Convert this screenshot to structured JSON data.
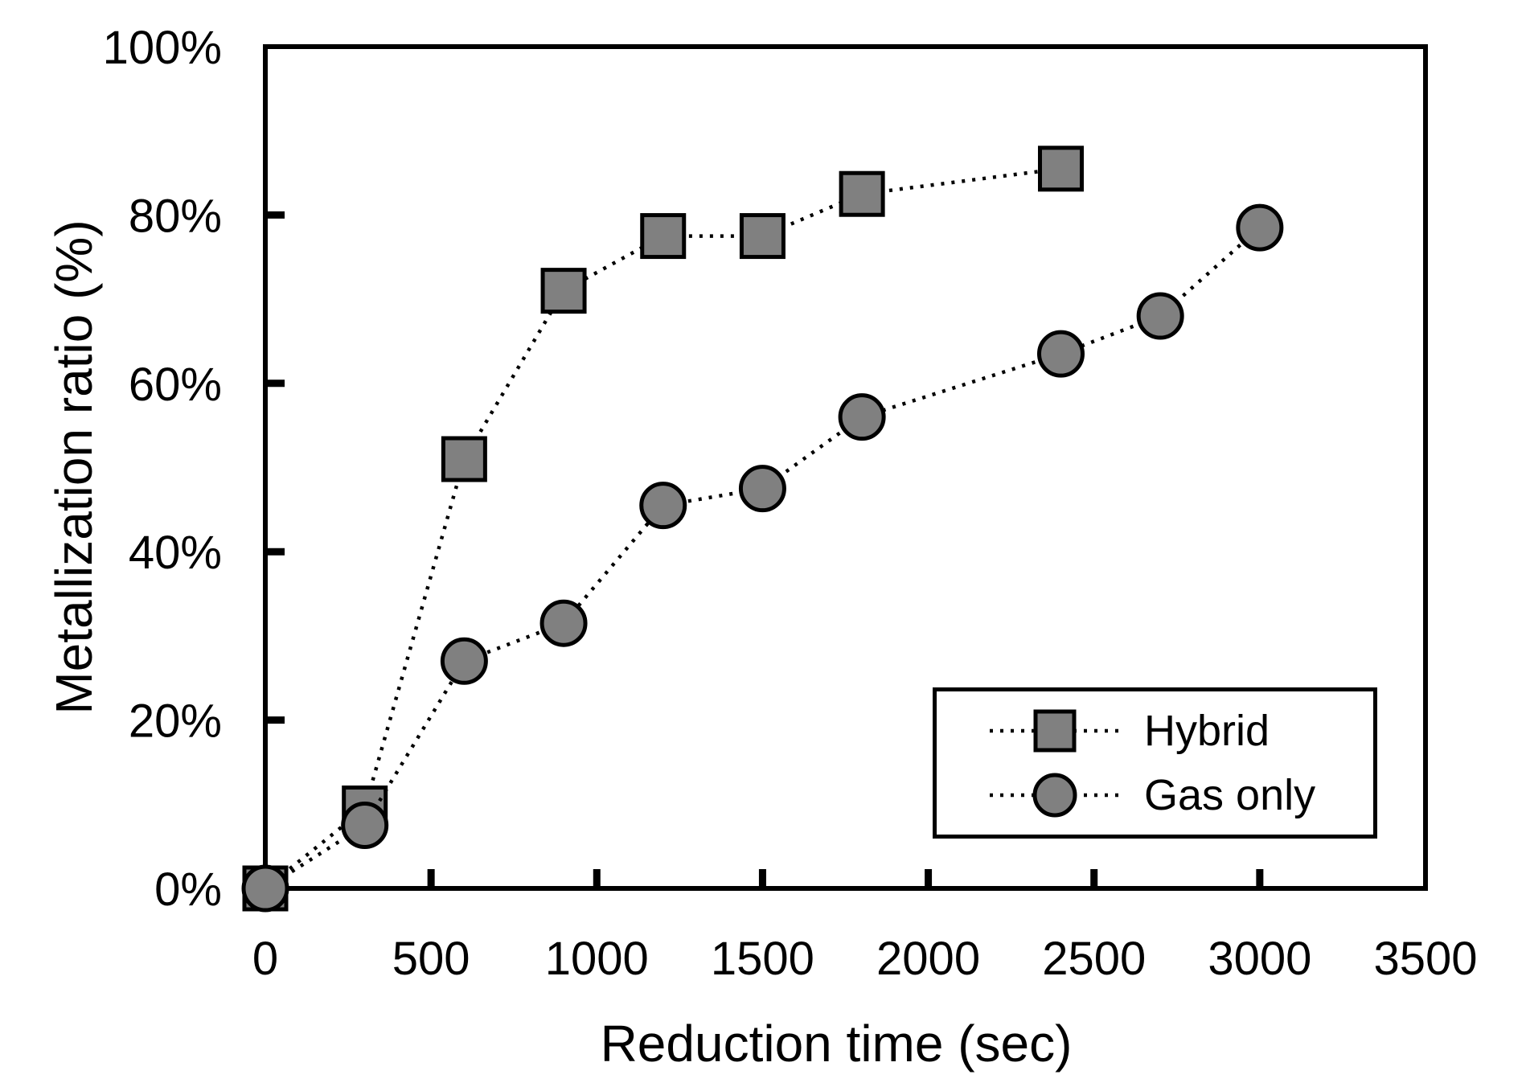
{
  "chart_data": {
    "type": "line",
    "title": "",
    "xlabel": "Reduction time (sec)",
    "ylabel": "Metallization ratio (%)",
    "xlim": [
      0,
      3500
    ],
    "ylim": [
      0,
      100
    ],
    "x_ticks": [
      0,
      500,
      1000,
      1500,
      2000,
      2500,
      3000,
      3500
    ],
    "y_ticks": [
      0,
      20,
      40,
      60,
      80,
      100
    ],
    "y_tick_suffix": "%",
    "grid": false,
    "legend_position": "inside-bottom-right",
    "line_style": "dotted",
    "line_color": "#000000",
    "marker_fill": "#808080",
    "marker_stroke": "#000000",
    "series": [
      {
        "name": "Hybrid",
        "marker": "square",
        "x": [
          0,
          300,
          600,
          900,
          1200,
          1500,
          1800,
          2400
        ],
        "y": [
          0,
          9.5,
          51,
          71,
          77.5,
          77.5,
          82.5,
          85.5
        ]
      },
      {
        "name": "Gas only",
        "marker": "circle",
        "x": [
          0,
          300,
          600,
          900,
          1200,
          1500,
          1800,
          2400,
          2700,
          3000
        ],
        "y": [
          0,
          7.5,
          27,
          31.5,
          45.5,
          47.5,
          56,
          63.5,
          68,
          78.5
        ]
      }
    ]
  }
}
